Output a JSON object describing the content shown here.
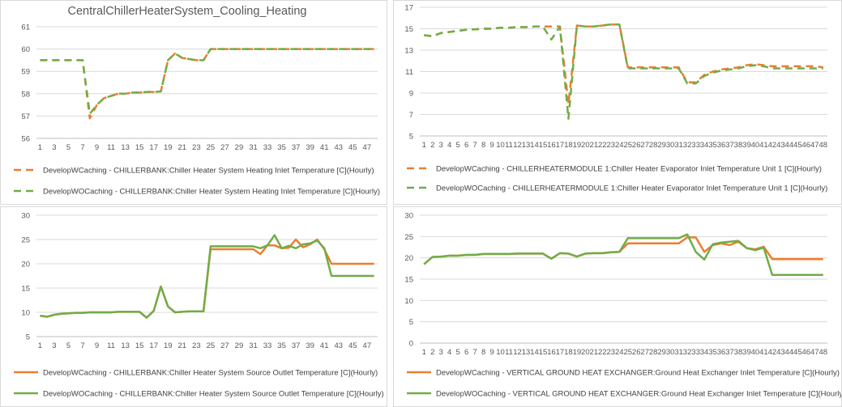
{
  "colors": {
    "orange": "#ED7D31",
    "green": "#70AD47",
    "grid": "#d9d9d9",
    "axis": "#bfbfbf"
  },
  "chart_data": [
    {
      "type": "line",
      "title": "CentralChillerHeaterSystem_Cooling_Heating",
      "ylim": [
        56,
        61
      ],
      "yticks": [
        56,
        57,
        58,
        59,
        60,
        61
      ],
      "x": [
        1,
        2,
        3,
        4,
        5,
        6,
        7,
        8,
        9,
        10,
        11,
        12,
        13,
        14,
        15,
        16,
        17,
        18,
        19,
        20,
        21,
        22,
        23,
        24,
        25,
        26,
        27,
        28,
        29,
        30,
        31,
        32,
        33,
        34,
        35,
        36,
        37,
        38,
        39,
        40,
        41,
        42,
        43,
        44,
        45,
        46,
        47,
        48
      ],
      "xtick_labels": [
        "1",
        "3",
        "5",
        "7",
        "9",
        "11",
        "13",
        "15",
        "17",
        "19",
        "21",
        "23",
        "25",
        "27",
        "29",
        "31",
        "33",
        "35",
        "37",
        "39",
        "41",
        "43",
        "45",
        "47"
      ],
      "xtick_step": 2,
      "legend_position": "bottom",
      "series": [
        {
          "name": "DevelopWCaching - CHILLERBANK:Chiller Heater System Heating Inlet Temperature [C](Hourly)",
          "color_key": "orange",
          "dash": "dash",
          "values": [
            59.5,
            59.5,
            59.5,
            59.5,
            59.5,
            59.5,
            59.5,
            56.9,
            57.5,
            57.8,
            57.9,
            58.0,
            58.0,
            58.05,
            58.05,
            58.08,
            58.08,
            58.1,
            59.5,
            59.8,
            59.6,
            59.55,
            59.5,
            59.5,
            60,
            60,
            60,
            60,
            60,
            60,
            60,
            60,
            60,
            60,
            60,
            60,
            60,
            60,
            60,
            60,
            60,
            60,
            60,
            60,
            60,
            60,
            60,
            60
          ]
        },
        {
          "name": "DevelopWOCaching - CHILLERBANK:Chiller Heater System Heating Inlet Temperature [C](Hourly)",
          "color_key": "green",
          "dash": "dash",
          "values": [
            59.5,
            59.5,
            59.5,
            59.5,
            59.5,
            59.5,
            59.5,
            57.1,
            57.5,
            57.8,
            57.9,
            58.0,
            58.0,
            58.05,
            58.05,
            58.08,
            58.08,
            58.1,
            59.5,
            59.8,
            59.6,
            59.55,
            59.5,
            59.5,
            60,
            60,
            60,
            60,
            60,
            60,
            60,
            60,
            60,
            60,
            60,
            60,
            60,
            60,
            60,
            60,
            60,
            60,
            60,
            60,
            60,
            60,
            60,
            60
          ]
        }
      ]
    },
    {
      "type": "line",
      "title": "",
      "ylim": [
        5,
        17
      ],
      "yticks": [
        5,
        7,
        9,
        11,
        13,
        15,
        17
      ],
      "x": [
        1,
        2,
        3,
        4,
        5,
        6,
        7,
        8,
        9,
        10,
        11,
        12,
        13,
        14,
        15,
        16,
        17,
        18,
        19,
        20,
        21,
        22,
        23,
        24,
        25,
        26,
        27,
        28,
        29,
        30,
        31,
        32,
        33,
        34,
        35,
        36,
        37,
        38,
        39,
        40,
        41,
        42,
        43,
        44,
        45,
        46,
        47,
        48
      ],
      "xtick_labels": [
        "1",
        "2",
        "3",
        "4",
        "5",
        "6",
        "7",
        "8",
        "9",
        "10",
        "11",
        "12",
        "13",
        "14",
        "15",
        "16",
        "17",
        "18",
        "19",
        "20",
        "21",
        "22",
        "23",
        "24",
        "25",
        "26",
        "27",
        "28",
        "29",
        "30",
        "31",
        "32",
        "33",
        "34",
        "35",
        "36",
        "37",
        "38",
        "39",
        "40",
        "41",
        "42",
        "43",
        "44",
        "45",
        "46",
        "47",
        "48"
      ],
      "xtick_step": 1,
      "legend_position": "bottom",
      "series": [
        {
          "name": "DevelopWCaching - CHILLERHEATERMODULE 1:Chiller Heater Evaporator Inlet Temperature Unit 1 [C](Hourly)",
          "color_key": "orange",
          "dash": "dash",
          "values": [
            14.4,
            14.3,
            14.6,
            14.7,
            14.8,
            14.9,
            14.95,
            15.0,
            15.0,
            15.1,
            15.1,
            15.15,
            15.15,
            15.2,
            15.2,
            15.2,
            15.2,
            8.0,
            15.3,
            15.2,
            15.2,
            15.3,
            15.4,
            15.4,
            11.4,
            11.4,
            11.4,
            11.4,
            11.4,
            11.4,
            11.4,
            10.0,
            10.0,
            10.7,
            11.0,
            11.2,
            11.3,
            11.4,
            11.6,
            11.7,
            11.6,
            11.5,
            11.5,
            11.5,
            11.5,
            11.5,
            11.5,
            11.4
          ]
        },
        {
          "name": "DevelopWOCaching - CHILLERHEATERMODULE 1:Chiller Heater Evaporator Inlet Temperature Unit 1 [C](Hourly)",
          "color_key": "green",
          "dash": "dash",
          "values": [
            14.4,
            14.3,
            14.6,
            14.7,
            14.8,
            14.9,
            14.95,
            15.0,
            15.0,
            15.1,
            15.1,
            15.15,
            15.15,
            15.2,
            15.2,
            14.0,
            15.2,
            6.6,
            15.3,
            15.2,
            15.2,
            15.3,
            15.4,
            15.4,
            11.3,
            11.3,
            11.3,
            11.3,
            11.3,
            11.3,
            11.3,
            9.9,
            9.9,
            10.6,
            10.9,
            11.1,
            11.2,
            11.3,
            11.5,
            11.6,
            11.5,
            11.3,
            11.3,
            11.3,
            11.3,
            11.3,
            11.3,
            11.3
          ]
        }
      ]
    },
    {
      "type": "line",
      "title": "",
      "ylim": [
        5,
        30
      ],
      "yticks": [
        5,
        10,
        15,
        20,
        25,
        30
      ],
      "x": [
        1,
        2,
        3,
        4,
        5,
        6,
        7,
        8,
        9,
        10,
        11,
        12,
        13,
        14,
        15,
        16,
        17,
        18,
        19,
        20,
        21,
        22,
        23,
        24,
        25,
        26,
        27,
        28,
        29,
        30,
        31,
        32,
        33,
        34,
        35,
        36,
        37,
        38,
        39,
        40,
        41,
        42,
        43,
        44,
        45,
        46,
        47,
        48
      ],
      "xtick_labels": [
        "1",
        "3",
        "5",
        "7",
        "9",
        "11",
        "13",
        "15",
        "17",
        "19",
        "21",
        "23",
        "25",
        "27",
        "29",
        "31",
        "33",
        "35",
        "37",
        "39",
        "41",
        "43",
        "45",
        "47"
      ],
      "xtick_step": 2,
      "legend_position": "bottom",
      "series": [
        {
          "name": "DevelopWCaching - CHILLERBANK:Chiller Heater System Source Outlet Temperature [C](Hourly)",
          "color_key": "orange",
          "dash": "solid",
          "values": [
            9.3,
            9.1,
            9.5,
            9.7,
            9.8,
            9.9,
            9.9,
            10.0,
            10.0,
            10.0,
            10.0,
            10.1,
            10.1,
            10.1,
            10.1,
            8.9,
            10.3,
            15.3,
            11.2,
            10.0,
            10.1,
            10.2,
            10.2,
            10.2,
            23.0,
            23.0,
            23.0,
            23.0,
            23.0,
            23.0,
            23.0,
            22.0,
            23.8,
            23.8,
            23.2,
            23.3,
            25.0,
            23.4,
            24.0,
            25.0,
            23.0,
            20.0,
            20.0,
            20.0,
            20.0,
            20.0,
            20.0,
            20.0
          ]
        },
        {
          "name": "DevelopWOCaching - CHILLERBANK:Chiller Heater System Source Outlet Temperature [C](Hourly)",
          "color_key": "green",
          "dash": "solid",
          "values": [
            9.3,
            9.1,
            9.5,
            9.7,
            9.8,
            9.9,
            9.9,
            10.0,
            10.0,
            10.0,
            10.0,
            10.1,
            10.1,
            10.1,
            10.1,
            8.9,
            10.3,
            15.3,
            11.2,
            10.0,
            10.1,
            10.2,
            10.2,
            10.2,
            23.6,
            23.6,
            23.6,
            23.6,
            23.6,
            23.6,
            23.6,
            23.2,
            23.8,
            25.9,
            23.2,
            23.7,
            23.2,
            24.0,
            24.2,
            24.8,
            23.2,
            17.5,
            17.5,
            17.5,
            17.5,
            17.5,
            17.5,
            17.5
          ]
        }
      ]
    },
    {
      "type": "line",
      "title": "",
      "ylim": [
        0,
        30
      ],
      "yticks": [
        0,
        5,
        10,
        15,
        20,
        25,
        30
      ],
      "x": [
        1,
        2,
        3,
        4,
        5,
        6,
        7,
        8,
        9,
        10,
        11,
        12,
        13,
        14,
        15,
        16,
        17,
        18,
        19,
        20,
        21,
        22,
        23,
        24,
        25,
        26,
        27,
        28,
        29,
        30,
        31,
        32,
        33,
        34,
        35,
        36,
        37,
        38,
        39,
        40,
        41,
        42,
        43,
        44,
        45,
        46,
        47,
        48
      ],
      "xtick_labels": [
        "1",
        "2",
        "3",
        "4",
        "5",
        "6",
        "7",
        "8",
        "9",
        "10",
        "11",
        "12",
        "13",
        "14",
        "15",
        "16",
        "17",
        "18",
        "19",
        "20",
        "21",
        "22",
        "23",
        "24",
        "25",
        "26",
        "27",
        "28",
        "29",
        "30",
        "31",
        "32",
        "33",
        "34",
        "35",
        "36",
        "37",
        "38",
        "39",
        "40",
        "41",
        "42",
        "43",
        "44",
        "45",
        "46",
        "47",
        "48"
      ],
      "xtick_step": 1,
      "legend_position": "bottom",
      "series": [
        {
          "name": "DevelopWCaching - VERTICAL GROUND HEAT EXCHANGER:Ground Heat Exchanger Inlet Temperature [C](Hourly)",
          "color_key": "orange",
          "dash": "solid",
          "values": [
            18.5,
            20.2,
            20.3,
            20.5,
            20.5,
            20.7,
            20.7,
            20.9,
            20.9,
            20.9,
            20.9,
            21.0,
            21.0,
            21.0,
            21.0,
            19.8,
            21.1,
            21.0,
            20.3,
            21.0,
            21.1,
            21.1,
            21.3,
            21.4,
            23.4,
            23.4,
            23.4,
            23.4,
            23.4,
            23.4,
            23.4,
            24.8,
            24.8,
            21.4,
            23.0,
            23.4,
            23.0,
            23.8,
            22.3,
            22.0,
            22.6,
            19.7,
            19.7,
            19.7,
            19.7,
            19.7,
            19.7,
            19.7
          ]
        },
        {
          "name": "DevelopWOCaching - VERTICAL GROUND HEAT EXCHANGER:Ground Heat Exchanger Inlet Temperature [C](Hourly)",
          "color_key": "green",
          "dash": "solid",
          "values": [
            18.5,
            20.2,
            20.3,
            20.5,
            20.5,
            20.7,
            20.7,
            20.9,
            20.9,
            20.9,
            20.9,
            21.0,
            21.0,
            21.0,
            21.0,
            19.8,
            21.1,
            21.0,
            20.3,
            21.0,
            21.1,
            21.1,
            21.3,
            21.4,
            24.6,
            24.6,
            24.6,
            24.6,
            24.6,
            24.6,
            24.6,
            25.5,
            21.4,
            19.6,
            23.2,
            23.6,
            23.8,
            24.0,
            22.3,
            21.8,
            22.4,
            16.0,
            16.0,
            16.0,
            16.0,
            16.0,
            16.0,
            16.0
          ]
        }
      ]
    }
  ]
}
